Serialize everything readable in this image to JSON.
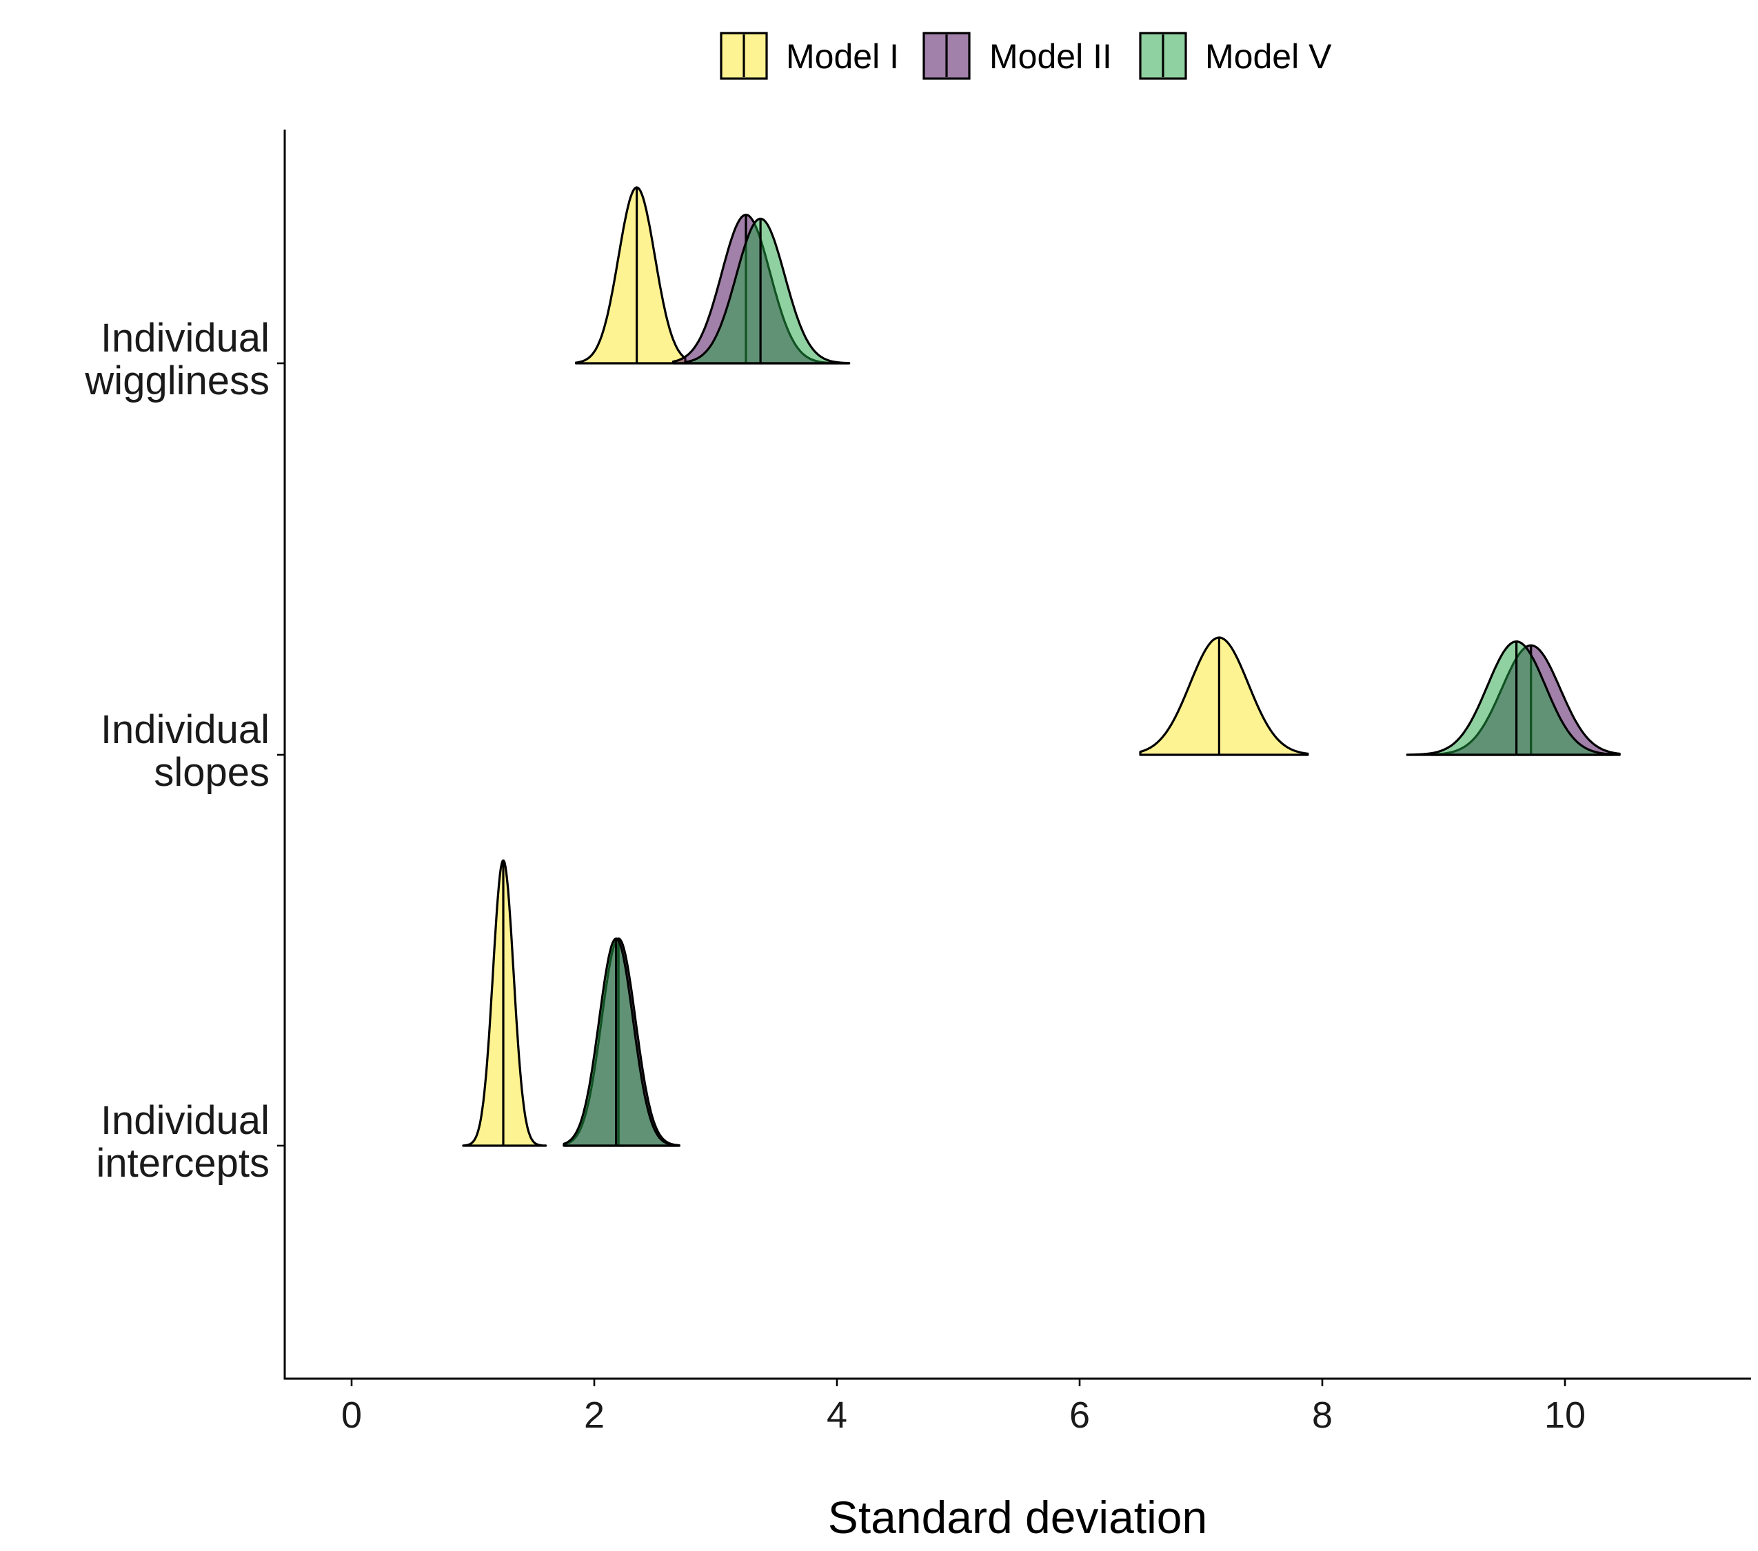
{
  "chart_data": {
    "type": "ridgeline",
    "xlabel": "Standard deviation",
    "x_ticks": [
      0,
      2,
      4,
      6,
      8,
      10
    ],
    "xlim": [
      -0.55,
      11.5
    ],
    "categories": [
      "Individual intercepts",
      "Individual slopes",
      "Individual wiggliness"
    ],
    "category_lines": [
      [
        "Individual",
        "intercepts"
      ],
      [
        "Individual",
        "slopes"
      ],
      [
        "Individual",
        "wiggliness"
      ]
    ],
    "legend": {
      "position": "top",
      "items": [
        {
          "name": "Model I",
          "color": "#FDE725"
        },
        {
          "name": "Model II",
          "color": "#440154"
        },
        {
          "name": "Model V",
          "color": "#22A443"
        }
      ]
    },
    "fill_opacity": 0.5,
    "grid": false,
    "series": [
      {
        "name": "Model I",
        "color": "#FDE725",
        "distributions": [
          {
            "category": "Individual intercepts",
            "median": 1.25,
            "sd": 0.085,
            "min": 0.92,
            "max": 1.6,
            "rel_height": 0.73
          },
          {
            "category": "Individual slopes",
            "median": 7.15,
            "sd": 0.24,
            "min": 6.5,
            "max": 7.88,
            "rel_height": 0.3
          },
          {
            "category": "Individual wiggliness",
            "median": 2.35,
            "sd": 0.15,
            "min": 1.85,
            "max": 2.75,
            "rel_height": 0.45
          }
        ]
      },
      {
        "name": "Model II",
        "color": "#440154",
        "distributions": [
          {
            "category": "Individual intercepts",
            "median": 2.2,
            "sd": 0.14,
            "min": 1.75,
            "max": 2.7,
            "rel_height": 0.53
          },
          {
            "category": "Individual slopes",
            "median": 9.72,
            "sd": 0.24,
            "min": 8.9,
            "max": 10.45,
            "rel_height": 0.28
          },
          {
            "category": "Individual wiggliness",
            "median": 3.25,
            "sd": 0.2,
            "min": 2.65,
            "max": 4.1,
            "rel_height": 0.38
          }
        ]
      },
      {
        "name": "Model V",
        "color": "#22A443",
        "distributions": [
          {
            "category": "Individual intercepts",
            "median": 2.18,
            "sd": 0.14,
            "min": 1.75,
            "max": 2.7,
            "rel_height": 0.53
          },
          {
            "category": "Individual slopes",
            "median": 9.6,
            "sd": 0.24,
            "min": 8.7,
            "max": 10.4,
            "rel_height": 0.29
          },
          {
            "category": "Individual wiggliness",
            "median": 3.37,
            "sd": 0.2,
            "min": 2.75,
            "max": 4.1,
            "rel_height": 0.37
          }
        ]
      }
    ]
  }
}
